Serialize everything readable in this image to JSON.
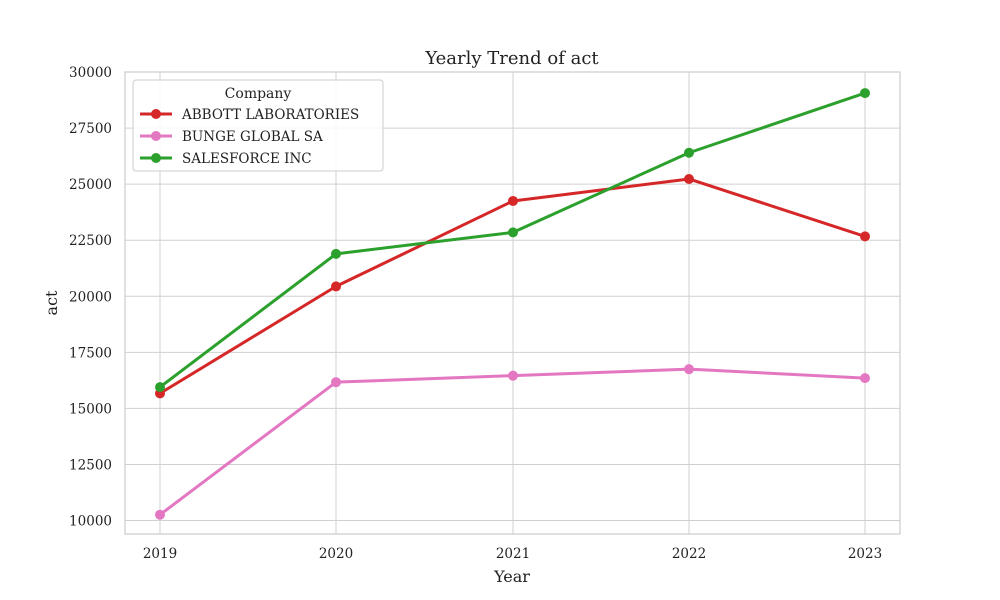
{
  "chart_data": {
    "type": "line",
    "title": "Yearly Trend of act",
    "xlabel": "Year",
    "ylabel": "act",
    "x": [
      "2019",
      "2020",
      "2021",
      "2022",
      "2023"
    ],
    "ylim": [
      9400,
      30000
    ],
    "yticks": [
      "10000",
      "12500",
      "15000",
      "17500",
      "20000",
      "22500",
      "25000",
      "27500",
      "30000"
    ],
    "grid": true,
    "legend": {
      "title": "Company",
      "placement": "top-left"
    },
    "series": [
      {
        "name": "ABBOTT LABORATORIES",
        "color": "#d62728",
        "values": [
          15670,
          20440,
          24250,
          25230,
          22670
        ]
      },
      {
        "name": "BUNGE GLOBAL SA",
        "color": "#e377c2",
        "values": [
          10260,
          16170,
          16460,
          16750,
          16350
        ]
      },
      {
        "name": "SALESFORCE INC",
        "color": "#2ca02c",
        "values": [
          15950,
          21890,
          22850,
          26400,
          29060
        ]
      }
    ]
  }
}
